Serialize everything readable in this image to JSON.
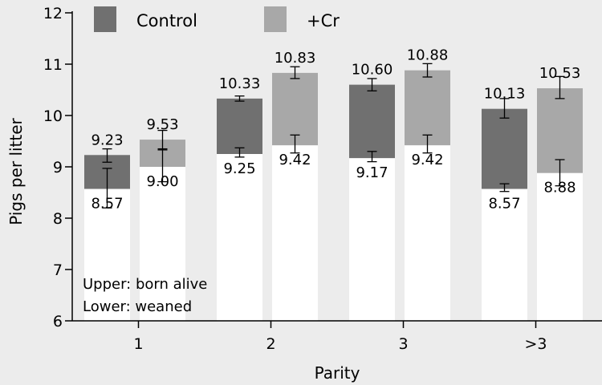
{
  "chart_data": {
    "type": "bar",
    "stacked_overlay": true,
    "categories": [
      "1",
      "2",
      "3",
      ">3"
    ],
    "xlabel": "Parity",
    "ylabel": "Pigs per litter",
    "ylim": [
      6,
      12
    ],
    "yticks": [
      6,
      7,
      8,
      9,
      10,
      11,
      12
    ],
    "grid": false,
    "legend_position": "top-left",
    "series": [
      {
        "name": "Control",
        "color": "#707070",
        "born_alive": [
          9.23,
          10.33,
          10.6,
          10.13
        ],
        "weaned": [
          8.57,
          9.25,
          9.17,
          8.57
        ],
        "born_alive_labels": [
          "9.23",
          "10.33",
          "10.60",
          "10.13"
        ],
        "weaned_labels": [
          "8.57",
          "9.25",
          "9.17",
          "8.57"
        ],
        "born_alive_err": [
          [
            9.09,
            9.35
          ],
          [
            10.28,
            10.38
          ],
          [
            10.48,
            10.72
          ],
          [
            9.95,
            10.33
          ]
        ],
        "weaned_err": [
          [
            8.2,
            8.97
          ],
          [
            9.19,
            9.37
          ],
          [
            9.1,
            9.3
          ],
          [
            8.52,
            8.67
          ]
        ]
      },
      {
        "name": "+Cr",
        "color": "#a8a8a8",
        "born_alive": [
          9.53,
          10.83,
          10.88,
          10.53
        ],
        "weaned": [
          9.0,
          9.42,
          9.42,
          8.88
        ],
        "born_alive_labels": [
          "9.53",
          "10.83",
          "10.88",
          "10.53"
        ],
        "weaned_labels": [
          "9.00",
          "9.42",
          "9.42",
          "8.88"
        ],
        "born_alive_err": [
          [
            9.33,
            9.71
          ],
          [
            10.72,
            10.95
          ],
          [
            10.75,
            11.01
          ],
          [
            10.33,
            10.76
          ]
        ],
        "weaned_err": [
          [
            8.71,
            9.35
          ],
          [
            9.27,
            9.62
          ],
          [
            9.27,
            9.62
          ],
          [
            8.63,
            9.14
          ]
        ]
      }
    ],
    "annotations": [
      "Upper: born alive",
      "Lower: weaned"
    ]
  }
}
